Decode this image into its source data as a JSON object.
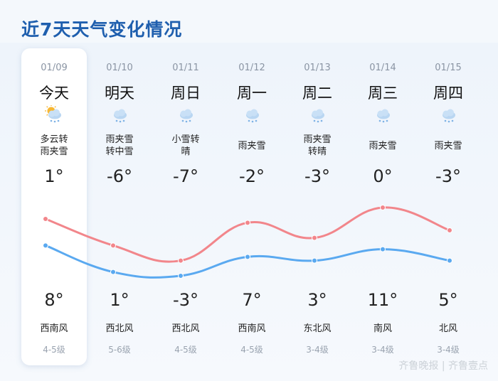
{
  "title": "近7天天气变化情况",
  "watermark": "齐鲁晚报 | 齐鲁壹点",
  "colors": {
    "high": "#f2868b",
    "low": "#5aa9f0",
    "title": "#1f5fae"
  },
  "days": [
    {
      "date": "01/09",
      "name": "今天",
      "icon": "partly-cloudy-sleet-icon",
      "cond": [
        "多云转",
        "雨夹雪"
      ],
      "high": "1°",
      "low": "8°",
      "wind_dir": "西南风",
      "wind_level": "4-5级"
    },
    {
      "date": "01/10",
      "name": "明天",
      "icon": "sleet-icon",
      "cond": [
        "雨夹雪",
        "转中雪"
      ],
      "high": "-6°",
      "low": "1°",
      "wind_dir": "西北风",
      "wind_level": "5-6级"
    },
    {
      "date": "01/11",
      "name": "周日",
      "icon": "snow-icon",
      "cond": [
        "小雪转",
        "晴"
      ],
      "high": "-7°",
      "low": "-3°",
      "wind_dir": "西北风",
      "wind_level": "4-5级"
    },
    {
      "date": "01/12",
      "name": "周一",
      "icon": "sleet-icon",
      "cond": [
        "雨夹雪"
      ],
      "high": "-2°",
      "low": "7°",
      "wind_dir": "西南风",
      "wind_level": "4-5级"
    },
    {
      "date": "01/13",
      "name": "周二",
      "icon": "sleet-icon",
      "cond": [
        "雨夹雪",
        "转晴"
      ],
      "high": "-3°",
      "low": "3°",
      "wind_dir": "东北风",
      "wind_level": "3-4级"
    },
    {
      "date": "01/14",
      "name": "周三",
      "icon": "sleet-icon",
      "cond": [
        "雨夹雪"
      ],
      "high": "0°",
      "low": "11°",
      "wind_dir": "南风",
      "wind_level": "3-4级"
    },
    {
      "date": "01/15",
      "name": "周四",
      "icon": "sleet-icon",
      "cond": [
        "雨夹雪"
      ],
      "high": "-3°",
      "low": "5°",
      "wind_dir": "北风",
      "wind_level": "3-4级"
    }
  ],
  "chart_data": {
    "type": "line",
    "x": [
      "01/09",
      "01/10",
      "01/11",
      "01/12",
      "01/13",
      "01/14",
      "01/15"
    ],
    "series": [
      {
        "values": [
          1,
          -6,
          -7,
          -2,
          -3,
          0,
          -3
        ]
      },
      {
        "values": [
          8,
          1,
          -3,
          7,
          3,
          11,
          5
        ]
      }
    ]
  }
}
